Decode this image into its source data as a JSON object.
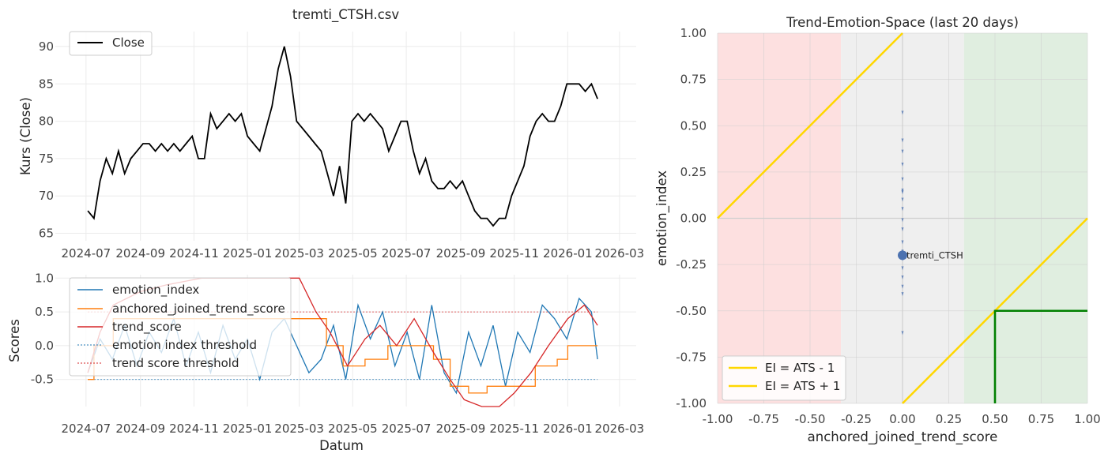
{
  "chart_data": [
    {
      "type": "line",
      "title": "tremti_CTSH.csv",
      "xlabel": "",
      "ylabel": "Kurs (Close)",
      "x_ticks": [
        "2024-07",
        "2024-09",
        "2024-11",
        "2025-01",
        "2025-03",
        "2025-05",
        "2025-07",
        "2025-09",
        "2025-11",
        "2026-01",
        "2026-03"
      ],
      "y_ticks": [
        "65",
        "70",
        "75",
        "80",
        "85",
        "90"
      ],
      "ylim": [
        64,
        92
      ],
      "legend": "top-left",
      "grid": true,
      "series": [
        {
          "name": "Close",
          "color": "#000000",
          "x": [
            "2024-07-03",
            "2024-07-10",
            "2024-07-17",
            "2024-07-24",
            "2024-07-31",
            "2024-08-07",
            "2024-08-14",
            "2024-08-21",
            "2024-08-28",
            "2024-09-04",
            "2024-09-11",
            "2024-09-18",
            "2024-09-25",
            "2024-10-02",
            "2024-10-09",
            "2024-10-16",
            "2024-10-23",
            "2024-10-30",
            "2024-11-06",
            "2024-11-13",
            "2024-11-20",
            "2024-11-27",
            "2024-12-04",
            "2024-12-11",
            "2024-12-18",
            "2024-12-25",
            "2025-01-01",
            "2025-01-08",
            "2025-01-15",
            "2025-01-22",
            "2025-01-29",
            "2025-02-05",
            "2025-02-12",
            "2025-02-19",
            "2025-02-26",
            "2025-03-05",
            "2025-03-12",
            "2025-03-19",
            "2025-03-26",
            "2025-04-02",
            "2025-04-09",
            "2025-04-16",
            "2025-04-23",
            "2025-04-30",
            "2025-05-07",
            "2025-05-14",
            "2025-05-21",
            "2025-05-28",
            "2025-06-04",
            "2025-06-11",
            "2025-06-18",
            "2025-06-25",
            "2025-07-02",
            "2025-07-09",
            "2025-07-16",
            "2025-07-23",
            "2025-07-30",
            "2025-08-06",
            "2025-08-13",
            "2025-08-20",
            "2025-08-27",
            "2025-09-03",
            "2025-09-10",
            "2025-09-17",
            "2025-09-24",
            "2025-10-01",
            "2025-10-08",
            "2025-10-15",
            "2025-10-22",
            "2025-10-29",
            "2025-11-05",
            "2025-11-12",
            "2025-11-19",
            "2025-11-26",
            "2025-12-03",
            "2025-12-10",
            "2025-12-17",
            "2025-12-24",
            "2025-12-31",
            "2026-01-07",
            "2026-01-14",
            "2026-01-21",
            "2026-01-28",
            "2026-02-04"
          ],
          "y": [
            68,
            67,
            72,
            75,
            73,
            76,
            73,
            75,
            76,
            77,
            77,
            76,
            77,
            76,
            77,
            76,
            77,
            78,
            75,
            75,
            81,
            79,
            80,
            81,
            80,
            81,
            78,
            77,
            76,
            79,
            82,
            87,
            90,
            86,
            80,
            79,
            78,
            77,
            76,
            73,
            70,
            74,
            69,
            80,
            81,
            80,
            81,
            80,
            79,
            76,
            78,
            80,
            80,
            76,
            73,
            75,
            72,
            71,
            71,
            72,
            71,
            72,
            70,
            68,
            67,
            67,
            66,
            67,
            67,
            70,
            72,
            74,
            78,
            80,
            81,
            80,
            80,
            82,
            85,
            85,
            85,
            84,
            85,
            83
          ]
        }
      ]
    },
    {
      "type": "line",
      "title": "",
      "xlabel": "Datum",
      "ylabel": "Scores",
      "x_ticks": [
        "2024-07",
        "2024-09",
        "2024-11",
        "2025-01",
        "2025-03",
        "2025-05",
        "2025-07",
        "2025-09",
        "2025-11",
        "2026-01",
        "2026-03"
      ],
      "y_ticks": [
        "-0.5",
        "0.0",
        "0.5",
        "1.0"
      ],
      "ylim": [
        -0.9,
        1.05
      ],
      "legend": "top-left",
      "grid": true,
      "series": [
        {
          "name": "emotion_index",
          "color": "#1f77b4",
          "x": [
            "2024-07-03",
            "2024-07-17",
            "2024-07-31",
            "2024-08-14",
            "2024-08-28",
            "2024-09-11",
            "2024-09-25",
            "2024-10-09",
            "2024-10-23",
            "2024-11-06",
            "2024-11-20",
            "2024-12-04",
            "2024-12-18",
            "2025-01-01",
            "2025-01-15",
            "2025-01-29",
            "2025-02-12",
            "2025-02-26",
            "2025-03-12",
            "2025-03-26",
            "2025-04-09",
            "2025-04-23",
            "2025-05-07",
            "2025-05-21",
            "2025-06-04",
            "2025-06-18",
            "2025-07-02",
            "2025-07-16",
            "2025-07-30",
            "2025-08-13",
            "2025-08-27",
            "2025-09-10",
            "2025-09-24",
            "2025-10-08",
            "2025-10-22",
            "2025-11-05",
            "2025-11-19",
            "2025-12-03",
            "2025-12-17",
            "2025-12-31",
            "2026-01-14",
            "2026-01-28",
            "2026-02-04"
          ],
          "y": [
            -0.4,
            0.1,
            -0.2,
            0.3,
            -0.3,
            0.2,
            -0.1,
            0.4,
            -0.3,
            0.2,
            -0.4,
            0.3,
            -0.2,
            0.1,
            -0.5,
            0.2,
            0.4,
            0.0,
            -0.4,
            -0.2,
            0.3,
            -0.5,
            0.6,
            0.1,
            0.5,
            -0.3,
            0.2,
            -0.5,
            0.6,
            -0.4,
            -0.7,
            0.2,
            -0.3,
            0.3,
            -0.6,
            0.2,
            -0.1,
            0.6,
            0.4,
            0.1,
            0.7,
            0.5,
            -0.2
          ]
        },
        {
          "name": "anchored_joined_trend_score",
          "color": "#ff7f0e",
          "x": [
            "2024-07-03",
            "2024-07-10",
            "2024-08-01",
            "2024-09-01",
            "2024-10-15",
            "2024-11-10",
            "2025-01-01",
            "2025-02-05",
            "2025-03-05",
            "2025-04-01",
            "2025-04-20",
            "2025-05-15",
            "2025-06-10",
            "2025-07-01",
            "2025-08-01",
            "2025-08-20",
            "2025-09-10",
            "2025-10-01",
            "2025-11-01",
            "2025-11-25",
            "2025-12-20",
            "2026-01-01",
            "2026-01-25",
            "2026-02-04"
          ],
          "y": [
            -0.5,
            0.0,
            0.4,
            0.4,
            0.4,
            0.4,
            0.4,
            0.4,
            0.4,
            0.0,
            -0.3,
            -0.2,
            0.0,
            0.0,
            -0.2,
            -0.6,
            -0.7,
            -0.6,
            -0.6,
            -0.3,
            -0.2,
            0.0,
            0.0,
            0.0
          ]
        },
        {
          "name": "trend_score",
          "color": "#d62728",
          "x": [
            "2024-07-03",
            "2024-07-17",
            "2024-08-01",
            "2024-09-01",
            "2024-10-01",
            "2024-11-10",
            "2024-12-01",
            "2025-01-01",
            "2025-02-01",
            "2025-03-01",
            "2025-03-20",
            "2025-04-05",
            "2025-04-25",
            "2025-05-15",
            "2025-06-01",
            "2025-06-20",
            "2025-07-10",
            "2025-08-01",
            "2025-08-20",
            "2025-09-05",
            "2025-09-25",
            "2025-10-15",
            "2025-11-01",
            "2025-11-20",
            "2025-12-10",
            "2026-01-01",
            "2026-01-20",
            "2026-02-04"
          ],
          "y": [
            -0.4,
            0.2,
            0.6,
            0.8,
            0.9,
            1.0,
            1.0,
            1.0,
            1.0,
            1.0,
            0.5,
            0.2,
            -0.3,
            0.1,
            0.3,
            0.0,
            0.4,
            -0.1,
            -0.5,
            -0.8,
            -0.9,
            -0.9,
            -0.7,
            -0.4,
            0.0,
            0.4,
            0.6,
            0.3
          ]
        }
      ],
      "thresholds": [
        {
          "name": "emotion index threshold",
          "color": "#1f77b4",
          "y": -0.5
        },
        {
          "name": "trend score threshold",
          "color": "#d62728",
          "y": 0.5
        }
      ]
    },
    {
      "type": "scatter",
      "title": "Trend-Emotion-Space (last 20 days)",
      "xlabel": "anchored_joined_trend_score",
      "ylabel": "emotion_index",
      "xlim": [
        -1.0,
        1.0
      ],
      "ylim": [
        -1.0,
        1.0
      ],
      "x_ticks": [
        "-1.00",
        "-0.75",
        "-0.50",
        "-0.25",
        "0.00",
        "0.25",
        "0.50",
        "0.75",
        "1.00"
      ],
      "y_ticks": [
        "-1.00",
        "-0.75",
        "-0.50",
        "-0.25",
        "0.00",
        "0.25",
        "0.50",
        "0.75",
        "1.00"
      ],
      "legend": "bottom-left",
      "grid": true,
      "regions": [
        {
          "x_from": -1.0,
          "x_to": -0.333,
          "color": "#fde0e0"
        },
        {
          "x_from": -0.333,
          "x_to": 0.333,
          "color": "#efefef"
        },
        {
          "x_from": 0.333,
          "x_to": 1.0,
          "color": "#e0eee0"
        }
      ],
      "lines": [
        {
          "name": "EI = ATS - 1",
          "color": "#ffd700",
          "slope": 1,
          "intercept": -1
        },
        {
          "name": "EI = ATS + 1",
          "color": "#ffd700",
          "slope": 1,
          "intercept": 1
        }
      ],
      "box": {
        "color": "#008000",
        "x": 0.5,
        "y": -0.5
      },
      "trail": {
        "color": "#4c72b0",
        "x": [
          0.0,
          0.0,
          0.0,
          0.0,
          0.0,
          0.0,
          0.0,
          0.0,
          0.0,
          0.0,
          0.0,
          0.0,
          0.0,
          0.0,
          0.0,
          0.0,
          0.0,
          0.0,
          0.0
        ],
        "y": [
          0.57,
          0.42,
          0.36,
          0.29,
          0.21,
          0.15,
          0.14,
          0.1,
          0.05,
          -0.01,
          -0.06,
          -0.13,
          -0.18,
          -0.22,
          -0.27,
          -0.32,
          -0.37,
          -0.41,
          -0.62
        ]
      },
      "point": {
        "label": "tremti_CTSH",
        "x": 0.0,
        "y": -0.2,
        "color": "#4c72b0"
      }
    }
  ]
}
